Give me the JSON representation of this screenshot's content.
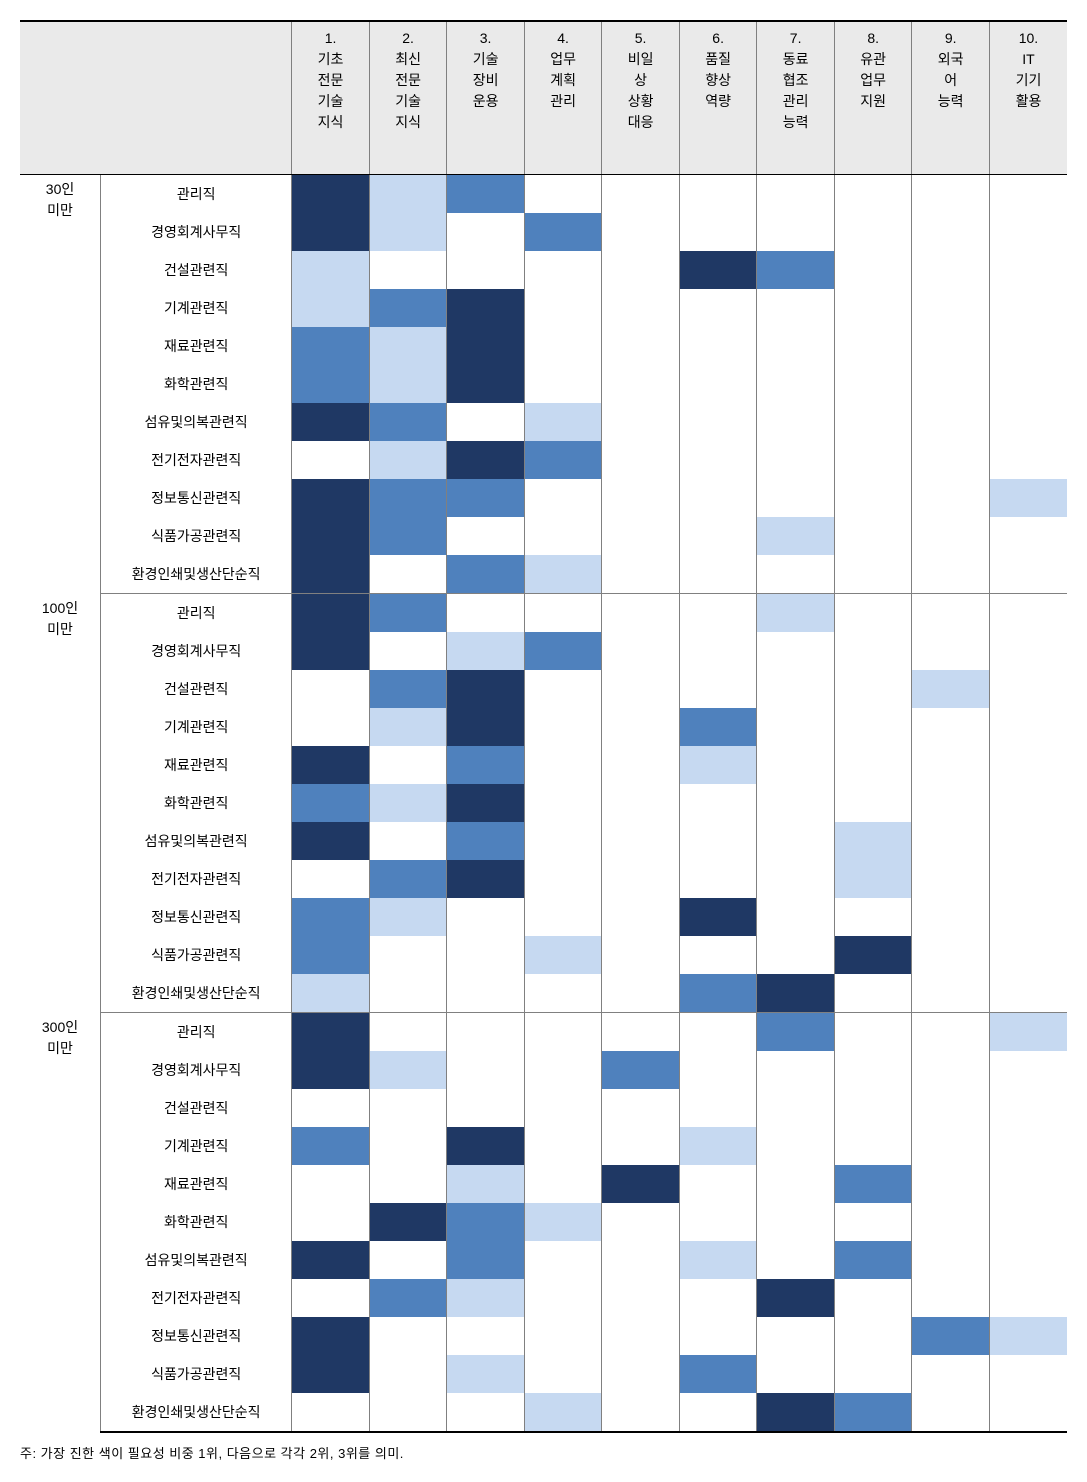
{
  "rank_colors": {
    "1": "#1f3864",
    "2": "#4f81bd",
    "3": "#c6d9f1"
  },
  "header_bg": "#eaeaea",
  "columns": [
    {
      "num": "1.",
      "lines": [
        "기초",
        "전문",
        "기술",
        "지식"
      ]
    },
    {
      "num": "2.",
      "lines": [
        "최신",
        "전문",
        "기술",
        "지식"
      ]
    },
    {
      "num": "3.",
      "lines": [
        "기술",
        "장비",
        "운용"
      ]
    },
    {
      "num": "4.",
      "lines": [
        "업무",
        "계획",
        "관리"
      ]
    },
    {
      "num": "5.",
      "lines": [
        "비일",
        "상",
        "상황",
        "대응"
      ]
    },
    {
      "num": "6.",
      "lines": [
        "품질",
        "향상",
        "역량"
      ]
    },
    {
      "num": "7.",
      "lines": [
        "동료",
        "협조",
        "관리",
        "능력"
      ]
    },
    {
      "num": "8.",
      "lines": [
        "유관",
        "업무",
        "지원"
      ]
    },
    {
      "num": "9.",
      "lines": [
        "외국",
        "어",
        "능력"
      ]
    },
    {
      "num": "10.",
      "lines": [
        "IT",
        "기기",
        "활용"
      ]
    }
  ],
  "groups": [
    {
      "label_lines": [
        "30인",
        "미만"
      ],
      "rows": [
        {
          "job": "관리직",
          "cells": [
            1,
            3,
            2,
            0,
            0,
            0,
            0,
            0,
            0,
            0
          ]
        },
        {
          "job": "경영회계사무직",
          "cells": [
            1,
            3,
            0,
            2,
            0,
            0,
            0,
            0,
            0,
            0
          ]
        },
        {
          "job": "건설관련직",
          "cells": [
            3,
            0,
            0,
            0,
            0,
            1,
            2,
            0,
            0,
            0
          ]
        },
        {
          "job": "기계관련직",
          "cells": [
            3,
            2,
            1,
            0,
            0,
            0,
            0,
            0,
            0,
            0
          ]
        },
        {
          "job": "재료관련직",
          "cells": [
            2,
            3,
            1,
            0,
            0,
            0,
            0,
            0,
            0,
            0
          ]
        },
        {
          "job": "화학관련직",
          "cells": [
            2,
            3,
            1,
            0,
            0,
            0,
            0,
            0,
            0,
            0
          ]
        },
        {
          "job": "섬유및의복관련직",
          "cells": [
            1,
            2,
            0,
            3,
            0,
            0,
            0,
            0,
            0,
            0
          ]
        },
        {
          "job": "전기전자관련직",
          "cells": [
            0,
            3,
            1,
            2,
            0,
            0,
            0,
            0,
            0,
            0
          ]
        },
        {
          "job": "정보통신관련직",
          "cells": [
            1,
            2,
            2,
            0,
            0,
            0,
            0,
            0,
            0,
            3
          ]
        },
        {
          "job": "식품가공관련직",
          "cells": [
            1,
            2,
            0,
            0,
            0,
            0,
            3,
            0,
            0,
            0
          ]
        },
        {
          "job": "환경인쇄및생산단순직",
          "cells": [
            1,
            0,
            2,
            3,
            0,
            0,
            0,
            0,
            0,
            0
          ]
        }
      ]
    },
    {
      "label_lines": [
        "100인",
        "미만"
      ],
      "rows": [
        {
          "job": "관리직",
          "cells": [
            1,
            2,
            0,
            0,
            0,
            0,
            3,
            0,
            0,
            0
          ]
        },
        {
          "job": "경영회계사무직",
          "cells": [
            1,
            0,
            3,
            2,
            0,
            0,
            0,
            0,
            0,
            0
          ]
        },
        {
          "job": "건설관련직",
          "cells": [
            0,
            2,
            1,
            0,
            0,
            0,
            0,
            0,
            3,
            0
          ]
        },
        {
          "job": "기계관련직",
          "cells": [
            0,
            3,
            1,
            0,
            0,
            2,
            0,
            0,
            0,
            0
          ]
        },
        {
          "job": "재료관련직",
          "cells": [
            1,
            0,
            2,
            0,
            0,
            3,
            0,
            0,
            0,
            0
          ]
        },
        {
          "job": "화학관련직",
          "cells": [
            2,
            3,
            1,
            0,
            0,
            0,
            0,
            0,
            0,
            0
          ]
        },
        {
          "job": "섬유및의복관련직",
          "cells": [
            1,
            0,
            2,
            0,
            0,
            0,
            0,
            3,
            0,
            0
          ]
        },
        {
          "job": "전기전자관련직",
          "cells": [
            0,
            2,
            1,
            0,
            0,
            0,
            0,
            3,
            0,
            0
          ]
        },
        {
          "job": "정보통신관련직",
          "cells": [
            2,
            3,
            0,
            0,
            0,
            1,
            0,
            0,
            0,
            0
          ]
        },
        {
          "job": "식품가공관련직",
          "cells": [
            2,
            0,
            0,
            3,
            0,
            0,
            0,
            1,
            0,
            0
          ]
        },
        {
          "job": "환경인쇄및생산단순직",
          "cells": [
            3,
            0,
            0,
            0,
            0,
            2,
            1,
            0,
            0,
            0
          ]
        }
      ]
    },
    {
      "label_lines": [
        "300인",
        "미만"
      ],
      "rows": [
        {
          "job": "관리직",
          "cells": [
            1,
            0,
            0,
            0,
            0,
            0,
            2,
            0,
            0,
            3
          ]
        },
        {
          "job": "경영회계사무직",
          "cells": [
            1,
            3,
            0,
            0,
            2,
            0,
            0,
            0,
            0,
            0
          ]
        },
        {
          "job": "건설관련직",
          "cells": [
            0,
            0,
            0,
            0,
            0,
            0,
            0,
            0,
            0,
            0
          ]
        },
        {
          "job": "기계관련직",
          "cells": [
            2,
            0,
            1,
            0,
            0,
            3,
            0,
            0,
            0,
            0
          ]
        },
        {
          "job": "재료관련직",
          "cells": [
            0,
            0,
            3,
            0,
            1,
            0,
            0,
            2,
            0,
            0
          ]
        },
        {
          "job": "화학관련직",
          "cells": [
            0,
            1,
            2,
            3,
            0,
            0,
            0,
            0,
            0,
            0
          ]
        },
        {
          "job": "섬유및의복관련직",
          "cells": [
            1,
            0,
            2,
            0,
            0,
            3,
            0,
            2,
            0,
            0
          ]
        },
        {
          "job": "전기전자관련직",
          "cells": [
            0,
            2,
            3,
            0,
            0,
            0,
            1,
            0,
            0,
            0
          ]
        },
        {
          "job": "정보통신관련직",
          "cells": [
            1,
            0,
            0,
            0,
            0,
            0,
            0,
            0,
            2,
            3
          ]
        },
        {
          "job": "식품가공관련직",
          "cells": [
            1,
            0,
            3,
            0,
            0,
            2,
            0,
            0,
            0,
            0
          ]
        },
        {
          "job": "환경인쇄및생산단순직",
          "cells": [
            0,
            0,
            0,
            3,
            0,
            0,
            1,
            2,
            0,
            0
          ]
        }
      ]
    }
  ],
  "footnote": "주: 가장 진한 색이 필요성 비중 1위, 다음으로 각각 2위, 3위를 의미."
}
